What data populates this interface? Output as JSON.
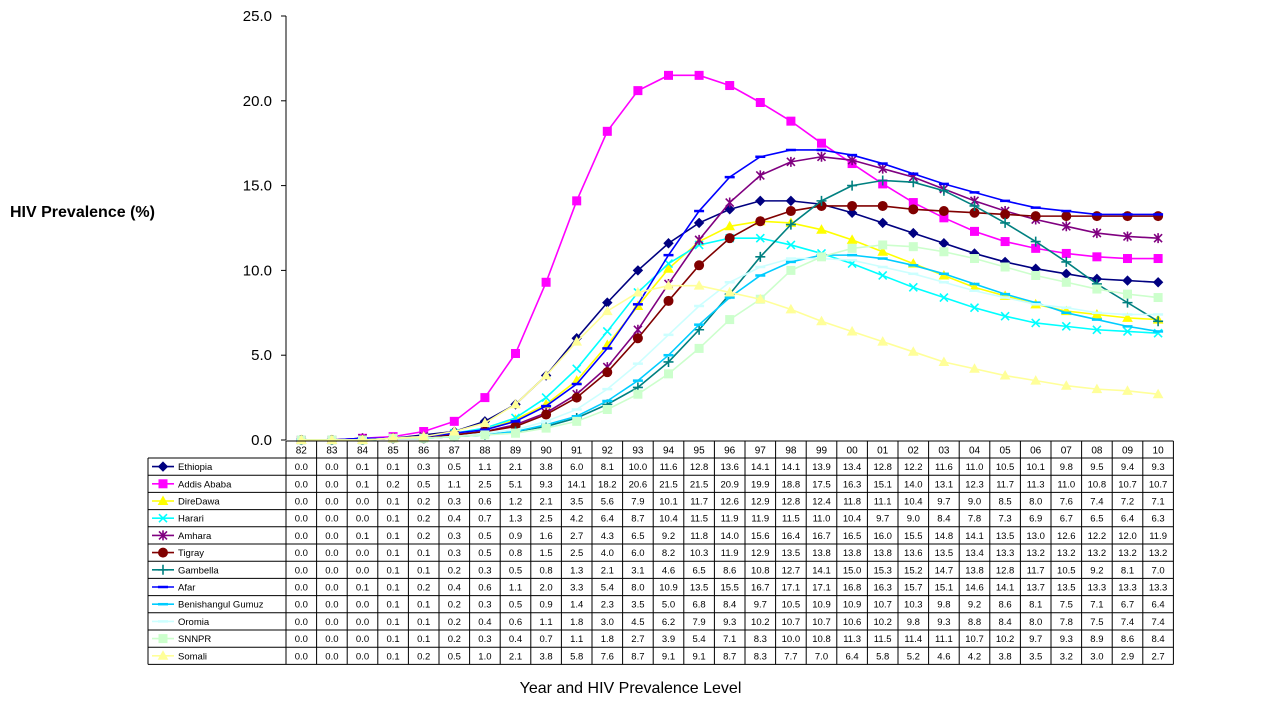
{
  "chart_data": {
    "type": "line",
    "title": "",
    "xlabel": "Year and HIV Prevalence Level",
    "ylabel": "HIV Prevalence (%)",
    "ylim": [
      0,
      25
    ],
    "yticks": [
      "0.0",
      "5.0",
      "10.0",
      "15.0",
      "20.0",
      "25.0"
    ],
    "grid": false,
    "legend": "data-table-left",
    "x": [
      "82",
      "83",
      "84",
      "85",
      "86",
      "87",
      "88",
      "89",
      "90",
      "91",
      "92",
      "93",
      "94",
      "95",
      "96",
      "97",
      "98",
      "99",
      "00",
      "01",
      "02",
      "03",
      "04",
      "05",
      "06",
      "07",
      "08",
      "09",
      "10"
    ],
    "series": [
      {
        "name": "Ethiopia",
        "color": "#000080",
        "marker": "diamond",
        "values": [
          0.0,
          0.0,
          0.1,
          0.1,
          0.3,
          0.5,
          1.1,
          2.1,
          3.8,
          6.0,
          8.1,
          10.0,
          11.6,
          12.8,
          13.6,
          14.1,
          14.1,
          13.9,
          13.4,
          12.8,
          12.2,
          11.6,
          11.0,
          10.5,
          10.1,
          9.8,
          9.5,
          9.4,
          9.3
        ]
      },
      {
        "name": "Addis Ababa",
        "color": "#ff00ff",
        "marker": "square",
        "values": [
          0.0,
          0.0,
          0.1,
          0.2,
          0.5,
          1.1,
          2.5,
          5.1,
          9.3,
          14.1,
          18.2,
          20.6,
          21.5,
          21.5,
          20.9,
          19.9,
          18.8,
          17.5,
          16.3,
          15.1,
          14.0,
          13.1,
          12.3,
          11.7,
          11.3,
          11.0,
          10.8,
          10.7,
          10.7
        ]
      },
      {
        "name": "DireDawa",
        "color": "#ffff00",
        "marker": "triangle",
        "values": [
          0.0,
          0.0,
          0.0,
          0.1,
          0.2,
          0.3,
          0.6,
          1.2,
          2.1,
          3.5,
          5.6,
          7.9,
          10.1,
          11.7,
          12.6,
          12.9,
          12.8,
          12.4,
          11.8,
          11.1,
          10.4,
          9.7,
          9.0,
          8.5,
          8.0,
          7.6,
          7.4,
          7.2,
          7.1
        ]
      },
      {
        "name": "Harari",
        "color": "#00ffff",
        "marker": "x",
        "values": [
          0.0,
          0.0,
          0.0,
          0.1,
          0.2,
          0.4,
          0.7,
          1.3,
          2.5,
          4.2,
          6.4,
          8.7,
          10.4,
          11.5,
          11.9,
          11.9,
          11.5,
          11.0,
          10.4,
          9.7,
          9.0,
          8.4,
          7.8,
          7.3,
          6.9,
          6.7,
          6.5,
          6.4,
          6.3
        ]
      },
      {
        "name": "Amhara",
        "color": "#800080",
        "marker": "star",
        "values": [
          0.0,
          0.0,
          0.1,
          0.1,
          0.2,
          0.3,
          0.5,
          0.9,
          1.6,
          2.7,
          4.3,
          6.5,
          9.2,
          11.8,
          14.0,
          15.6,
          16.4,
          16.7,
          16.5,
          16.0,
          15.5,
          14.8,
          14.1,
          13.5,
          13.0,
          12.6,
          12.2,
          12.0,
          11.9
        ]
      },
      {
        "name": "Tigray",
        "color": "#800000",
        "marker": "circle",
        "values": [
          0.0,
          0.0,
          0.0,
          0.1,
          0.1,
          0.3,
          0.5,
          0.8,
          1.5,
          2.5,
          4.0,
          6.0,
          8.2,
          10.3,
          11.9,
          12.9,
          13.5,
          13.8,
          13.8,
          13.8,
          13.6,
          13.5,
          13.4,
          13.3,
          13.2,
          13.2,
          13.2,
          13.2,
          13.2
        ]
      },
      {
        "name": "Gambella",
        "color": "#008080",
        "marker": "plus",
        "values": [
          0.0,
          0.0,
          0.0,
          0.1,
          0.1,
          0.2,
          0.3,
          0.5,
          0.8,
          1.3,
          2.1,
          3.1,
          4.6,
          6.5,
          8.6,
          10.8,
          12.7,
          14.1,
          15.0,
          15.3,
          15.2,
          14.7,
          13.8,
          12.8,
          11.7,
          10.5,
          9.2,
          8.1,
          7.0
        ]
      },
      {
        "name": "Afar",
        "color": "#0000ff",
        "marker": "dash",
        "values": [
          0.0,
          0.0,
          0.1,
          0.1,
          0.2,
          0.4,
          0.6,
          1.1,
          2.0,
          3.3,
          5.4,
          8.0,
          10.9,
          13.5,
          15.5,
          16.7,
          17.1,
          17.1,
          16.8,
          16.3,
          15.7,
          15.1,
          14.6,
          14.1,
          13.7,
          13.5,
          13.3,
          13.3,
          13.3
        ]
      },
      {
        "name": "Benishangul Gumuz",
        "color": "#00ccff",
        "marker": "dash",
        "values": [
          0.0,
          0.0,
          0.0,
          0.1,
          0.1,
          0.2,
          0.3,
          0.5,
          0.9,
          1.4,
          2.3,
          3.5,
          5.0,
          6.8,
          8.4,
          9.7,
          10.5,
          10.9,
          10.9,
          10.7,
          10.3,
          9.8,
          9.2,
          8.6,
          8.1,
          7.5,
          7.1,
          6.7,
          6.4
        ]
      },
      {
        "name": "Oromia",
        "color": "#ccffff",
        "marker": "dash",
        "values": [
          0.0,
          0.0,
          0.0,
          0.1,
          0.1,
          0.2,
          0.4,
          0.6,
          1.1,
          1.8,
          3.0,
          4.5,
          6.2,
          7.9,
          9.3,
          10.2,
          10.7,
          10.7,
          10.6,
          10.2,
          9.8,
          9.3,
          8.8,
          8.4,
          8.0,
          7.8,
          7.5,
          7.4,
          7.4
        ]
      },
      {
        "name": "SNNPR",
        "color": "#ccffcc",
        "marker": "square",
        "values": [
          0.0,
          0.0,
          0.0,
          0.1,
          0.1,
          0.2,
          0.3,
          0.4,
          0.7,
          1.1,
          1.8,
          2.7,
          3.9,
          5.4,
          7.1,
          8.3,
          10.0,
          10.8,
          11.3,
          11.5,
          11.4,
          11.1,
          10.7,
          10.2,
          9.7,
          9.3,
          8.9,
          8.6,
          8.4
        ]
      },
      {
        "name": "Somali",
        "color": "#ffff99",
        "marker": "triangle",
        "values": [
          0.0,
          0.0,
          0.0,
          0.1,
          0.2,
          0.5,
          1.0,
          2.1,
          3.8,
          5.8,
          7.6,
          8.7,
          9.1,
          9.1,
          8.7,
          8.3,
          7.7,
          7.0,
          6.4,
          5.8,
          5.2,
          4.6,
          4.2,
          3.8,
          3.5,
          3.2,
          3.0,
          2.9,
          2.7
        ]
      }
    ]
  }
}
